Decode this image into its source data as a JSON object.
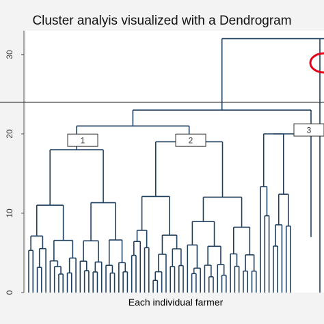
{
  "chart_data": {
    "type": "dendrogram",
    "title": "Cluster analyis visualized with a Dendrogram",
    "xlabel": "Each individual farmer",
    "ylabel": "",
    "yticks": [
      "0",
      "10",
      "20",
      "30"
    ],
    "ylim": [
      0,
      33
    ],
    "cut_height": 24,
    "clusters": [
      {
        "label": "1",
        "merge_height": 18,
        "leaves": 24
      },
      {
        "label": "2",
        "merge_height": 19,
        "leaves": 30
      },
      {
        "label": "3",
        "merge_height": 20,
        "leaves": 8
      }
    ],
    "top_merges": [
      {
        "children": [
          "1",
          "2"
        ],
        "height": 21
      },
      {
        "children": [
          "1+2",
          "3"
        ],
        "height": 23
      },
      {
        "children": [
          "1+2+3",
          "outlier"
        ],
        "height": 32
      }
    ],
    "colors": {
      "lines": "#1f3f5f",
      "cut_line": "#333333",
      "highlight": "#e3001b"
    }
  }
}
